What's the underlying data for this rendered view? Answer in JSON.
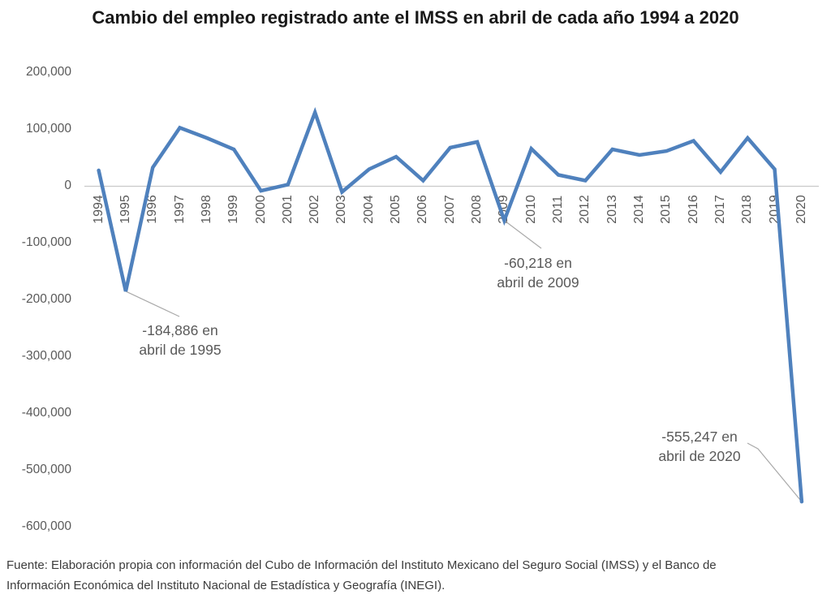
{
  "title": "Cambio del empleo registrado ante el IMSS en abril de cada año 1994 a 2020",
  "source_note": {
    "line1": "Fuente: Elaboración propia con información del Cubo de Información del Instituto Mexicano del Seguro Social (IMSS) y el Banco de",
    "line2": "Información Económica del Instituto Nacional de Estadística y Geografía (INEGI)."
  },
  "colors": {
    "line": "#4f81bd",
    "axis": "#c9c9c9",
    "tick_label": "#595959",
    "annotation_text": "#595959",
    "leader": "#a9a9a9",
    "title": "#191919",
    "source": "#3c3c3c"
  },
  "chart_data": {
    "type": "line",
    "title": "Cambio del empleo registrado ante el IMSS en abril de cada año 1994 a 2020",
    "xlabel": "",
    "ylabel": "",
    "grid": false,
    "legend": false,
    "ylim": [
      -600000,
      200000
    ],
    "x": [
      "1994",
      "1995",
      "1996",
      "1997",
      "1998",
      "1999",
      "2000",
      "2001",
      "2002",
      "2003",
      "2004",
      "2005",
      "2006",
      "2007",
      "2008",
      "2009",
      "2010",
      "2011",
      "2012",
      "2013",
      "2014",
      "2015",
      "2016",
      "2017",
      "2018",
      "2019",
      "2020"
    ],
    "series": [
      {
        "name": "Cambio del empleo registrado ante el IMSS en abril",
        "values": [
          28000,
          -184886,
          33000,
          103000,
          85000,
          65000,
          -8000,
          3000,
          130000,
          -10000,
          30000,
          52000,
          10000,
          68000,
          78000,
          -60218,
          66000,
          20000,
          10000,
          65000,
          55000,
          62000,
          80000,
          25000,
          85000,
          30000,
          -555247
        ]
      }
    ],
    "y_ticks": [
      {
        "value": 200000,
        "label": "200,000"
      },
      {
        "value": 100000,
        "label": "100,000"
      },
      {
        "value": 0,
        "label": "0"
      },
      {
        "value": -100000,
        "label": "-100,000"
      },
      {
        "value": -200000,
        "label": "-200,000"
      },
      {
        "value": -300000,
        "label": "-300,000"
      },
      {
        "value": -400000,
        "label": "-400,000"
      },
      {
        "value": -500000,
        "label": "-500,000"
      },
      {
        "value": -600000,
        "label": "-600,000"
      }
    ],
    "annotations": [
      {
        "year": "1995",
        "value": -184886,
        "line1": "-184,886 en",
        "line2": "abril de 1995"
      },
      {
        "year": "2009",
        "value": -60218,
        "line1": "-60,218 en",
        "line2": "abril de 2009"
      },
      {
        "year": "2020",
        "value": -555247,
        "line1": "-555,247 en",
        "line2": "abril de 2020"
      }
    ]
  }
}
